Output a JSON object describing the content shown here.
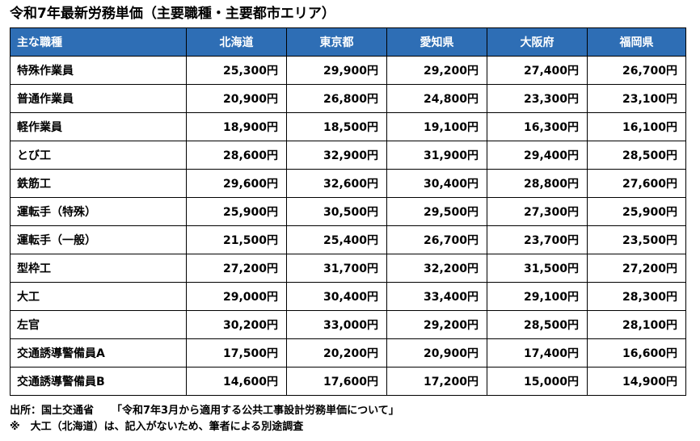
{
  "title": "令和7年最新労務単価（主要職種・主要都市エリア）",
  "table": {
    "header": {
      "job_label": "主な職種",
      "regions": [
        "北海道",
        "東京都",
        "愛知県",
        "大阪府",
        "福岡県"
      ]
    },
    "rows": [
      {
        "job": "特殊作業員",
        "wages": [
          "25,300円",
          "29,900円",
          "29,200円",
          "27,400円",
          "26,700円"
        ]
      },
      {
        "job": "普通作業員",
        "wages": [
          "20,900円",
          "26,800円",
          "24,800円",
          "23,300円",
          "23,100円"
        ]
      },
      {
        "job": "軽作業員",
        "wages": [
          "18,900円",
          "18,500円",
          "19,100円",
          "16,300円",
          "16,100円"
        ]
      },
      {
        "job": "とび工",
        "wages": [
          "28,600円",
          "32,900円",
          "31,900円",
          "29,400円",
          "28,500円"
        ]
      },
      {
        "job": "鉄筋工",
        "wages": [
          "29,600円",
          "32,600円",
          "30,400円",
          "28,800円",
          "27,600円"
        ]
      },
      {
        "job": "運転手（特殊）",
        "wages": [
          "25,900円",
          "30,500円",
          "29,500円",
          "27,300円",
          "25,900円"
        ]
      },
      {
        "job": "運転手（一般）",
        "wages": [
          "21,500円",
          "25,400円",
          "26,700円",
          "23,700円",
          "23,500円"
        ]
      },
      {
        "job": "型枠工",
        "wages": [
          "27,200円",
          "31,700円",
          "32,200円",
          "31,500円",
          "27,200円"
        ]
      },
      {
        "job": "大工",
        "wages": [
          "29,000円",
          "30,400円",
          "33,400円",
          "29,100円",
          "28,300円"
        ]
      },
      {
        "job": "左官",
        "wages": [
          "30,200円",
          "33,000円",
          "29,200円",
          "28,500円",
          "28,100円"
        ]
      },
      {
        "job": "交通誘導警備員A",
        "wages": [
          "17,500円",
          "20,200円",
          "20,900円",
          "17,400円",
          "16,600円"
        ]
      },
      {
        "job": "交通誘導警備員B",
        "wages": [
          "14,600円",
          "17,600円",
          "17,200円",
          "15,000円",
          "14,900円"
        ]
      }
    ]
  },
  "notes": {
    "source_label": "出所：国土交通省",
    "source_doc": "「令和7年3月から適用する公共工事設計労務単価について」",
    "remark": "※　大工（北海道）は、記入がないため、筆者による別途調査"
  },
  "colors": {
    "header_background": "#2e6eb5",
    "header_text": "#ffffff",
    "border": "#000000"
  }
}
